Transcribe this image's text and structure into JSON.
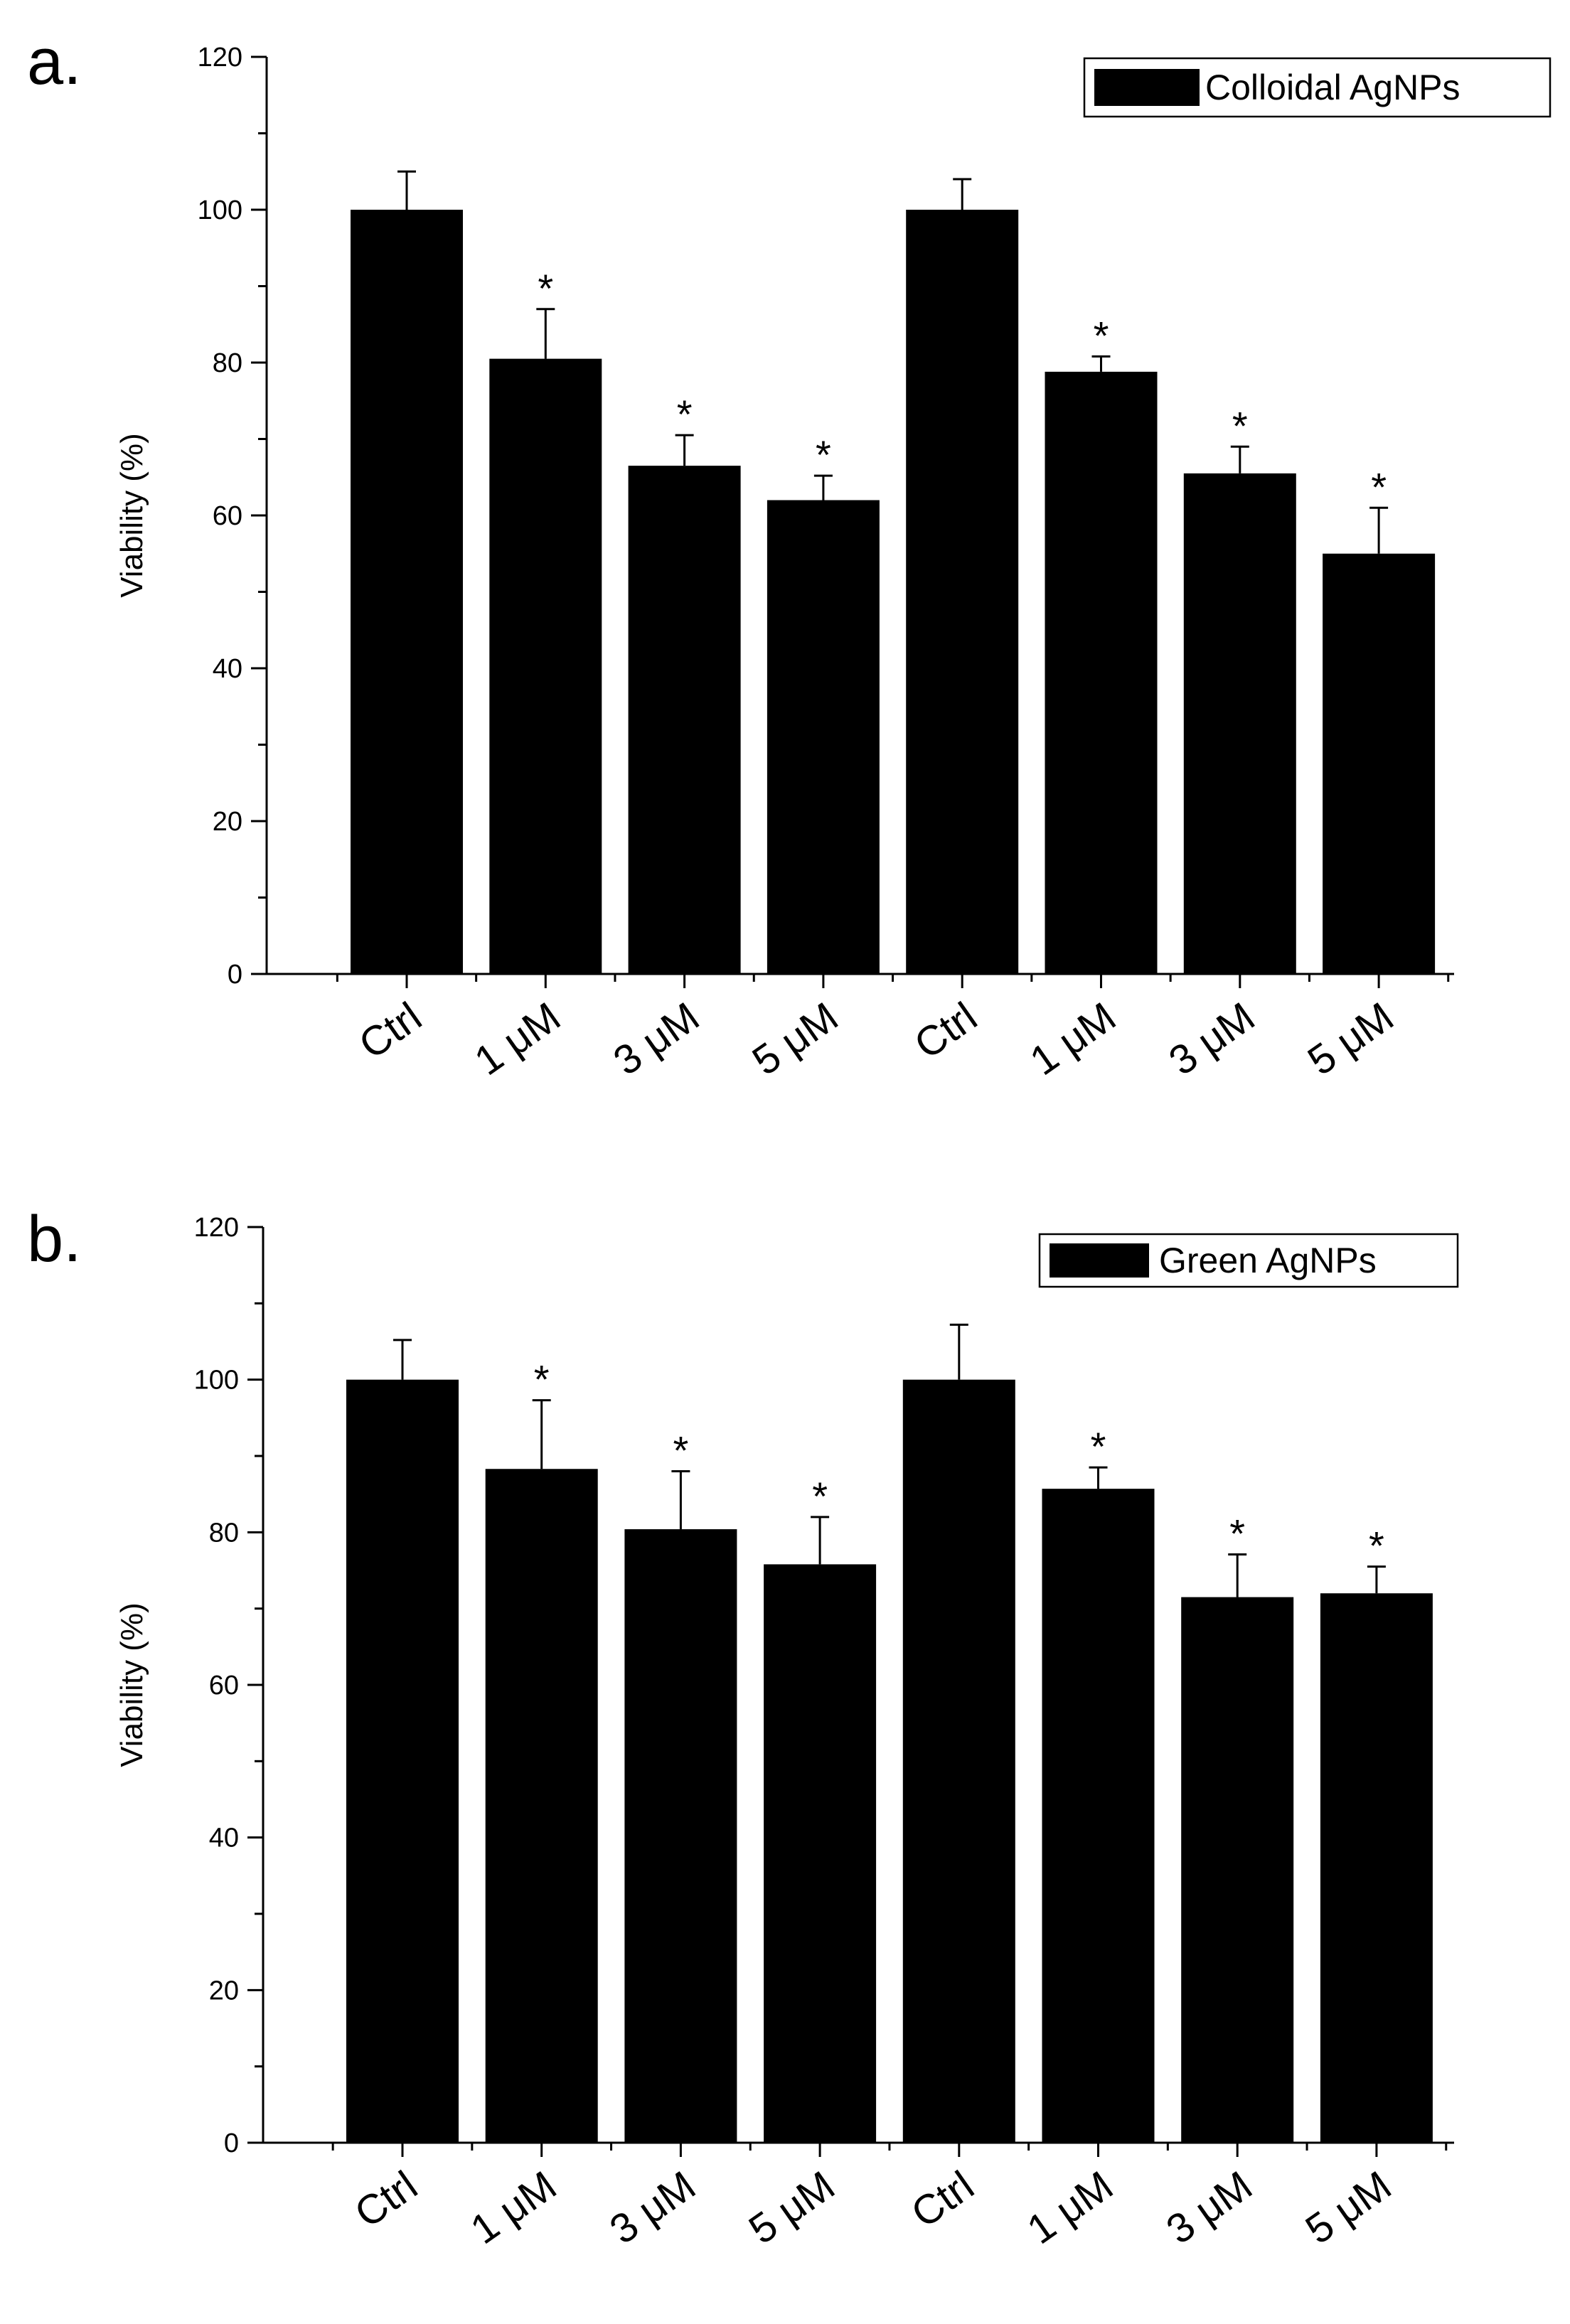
{
  "chart_data": [
    {
      "type": "bar",
      "panel_label": "a.",
      "ylabel": "Viability (%)",
      "xlabel": "",
      "ylim": [
        0,
        120
      ],
      "yticks": [
        0,
        20,
        40,
        60,
        80,
        100,
        120
      ],
      "categories": [
        "Ctrl",
        "1 μM",
        "3 μM",
        "5 μM",
        "Ctrl",
        "1 μM",
        "3 μM",
        "5 μM"
      ],
      "series": [
        {
          "name": "Colloidal AgNPs",
          "color": "#000000",
          "values": [
            100,
            80.5,
            66.5,
            62,
            100,
            78.8,
            65.5,
            55
          ],
          "errors": [
            5,
            6.5,
            4,
            3.2,
            4,
            2,
            3.5,
            6
          ],
          "annotations": [
            "",
            "*",
            "*",
            "*",
            "",
            "*",
            "*",
            "*"
          ]
        }
      ],
      "legend": "top-right",
      "grid": false
    },
    {
      "type": "bar",
      "panel_label": "b.",
      "ylabel": "Viability (%)",
      "xlabel": "",
      "ylim": [
        0,
        120
      ],
      "yticks": [
        0,
        20,
        40,
        60,
        80,
        100,
        120
      ],
      "categories": [
        "Ctrl",
        "1 μM",
        "3 μM",
        "5 μM",
        "Ctrl",
        "1 μM",
        "3 μM",
        "5 μM"
      ],
      "series": [
        {
          "name": "Green AgNPs",
          "color": "#000000",
          "values": [
            100,
            88.3,
            80.4,
            75.8,
            100,
            85.7,
            71.5,
            72
          ],
          "errors": [
            5.2,
            9,
            7.6,
            6.2,
            7.2,
            2.8,
            5.6,
            3.5
          ],
          "annotations": [
            "",
            "*",
            "*",
            "*",
            "",
            "*",
            "*",
            "*"
          ]
        }
      ],
      "legend": "top-right",
      "grid": false
    }
  ]
}
